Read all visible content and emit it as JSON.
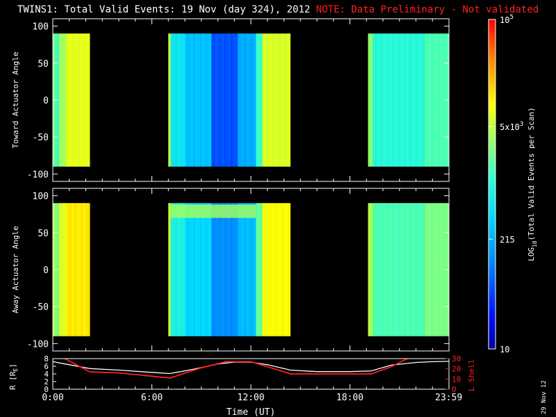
{
  "page": {
    "title": "TWINS1: Total Valid Events: 19 Nov (day 324), 2012",
    "note": "NOTE: Data Preliminary - Not validated",
    "date_stamp": "29 Nov 12"
  },
  "colors": {
    "background": "#000000",
    "axis": "#ffffff",
    "note": "#ff2020",
    "L_shell_line": "#ff2020",
    "R_line": "#ffffff"
  },
  "colorbar": {
    "label": "LOG10(Total Valid Events per Scan)",
    "label_main": "LOG",
    "label_sub": "10",
    "label_rest": "(Total Valid Events per Scan)",
    "min": 10,
    "max": 100000,
    "scale": "log",
    "tick_labels": [
      {
        "value": 100000,
        "text": "10",
        "sup": "5"
      },
      {
        "value": 5000,
        "text": "5x10",
        "sup": "3"
      },
      {
        "value": 215,
        "text": "215",
        "sup": ""
      },
      {
        "value": 10,
        "text": "10",
        "sup": ""
      }
    ]
  },
  "chart_data": [
    {
      "type": "heatmap",
      "panel": "Toward Actuator Angle",
      "ylabel": "Toward Actuator Angle",
      "xlim_hours": [
        0,
        24
      ],
      "ylim": [
        -110,
        110
      ],
      "data_ylim": [
        -90,
        90
      ],
      "yticks": [
        100,
        50,
        0,
        -50,
        -100
      ],
      "segments": [
        {
          "start": 0.0,
          "end": 0.15,
          "log10_events": 3.35
        },
        {
          "start": 0.15,
          "end": 0.35,
          "log10_events": 3.1
        },
        {
          "start": 0.35,
          "end": 0.8,
          "log10_events": 3.55
        },
        {
          "start": 0.8,
          "end": 2.25,
          "log10_events": 3.85
        },
        {
          "start": 7.0,
          "end": 7.15,
          "log10_events": 3.7
        },
        {
          "start": 7.15,
          "end": 8.0,
          "log10_events": 2.75
        },
        {
          "start": 8.0,
          "end": 9.6,
          "log10_events": 2.45
        },
        {
          "start": 9.6,
          "end": 11.2,
          "log10_events": 1.75
        },
        {
          "start": 11.2,
          "end": 12.3,
          "log10_events": 2.3
        },
        {
          "start": 12.3,
          "end": 12.7,
          "log10_events": 3.1
        },
        {
          "start": 12.7,
          "end": 14.4,
          "log10_events": 3.8
        },
        {
          "start": 19.1,
          "end": 19.4,
          "log10_events": 3.45
        },
        {
          "start": 19.4,
          "end": 22.5,
          "log10_events": 3.0
        },
        {
          "start": 22.5,
          "end": 24.0,
          "log10_events": 3.2
        }
      ]
    },
    {
      "type": "heatmap",
      "panel": "Away Actuator Angle",
      "ylabel": "Away Actuator Angle",
      "xlim_hours": [
        0,
        24
      ],
      "ylim": [
        -110,
        110
      ],
      "data_ylim": [
        -90,
        90
      ],
      "yticks": [
        100,
        50,
        0,
        -50,
        -100
      ],
      "segments": [
        {
          "start": 0.0,
          "end": 0.15,
          "log10_events": 3.6
        },
        {
          "start": 0.15,
          "end": 0.35,
          "log10_events": 3.35
        },
        {
          "start": 0.35,
          "end": 0.8,
          "log10_events": 3.8
        },
        {
          "start": 0.8,
          "end": 2.25,
          "log10_events": 4.05
        },
        {
          "start": 7.0,
          "end": 7.15,
          "log10_events": 3.75
        },
        {
          "start": 7.15,
          "end": 8.0,
          "log10_events": 2.9
        },
        {
          "start": 8.0,
          "end": 9.6,
          "log10_events": 2.6
        },
        {
          "start": 9.6,
          "end": 11.2,
          "log10_events": 2.1
        },
        {
          "start": 11.2,
          "end": 12.3,
          "log10_events": 2.4
        },
        {
          "start": 12.3,
          "end": 12.7,
          "log10_events": 3.3
        },
        {
          "start": 12.7,
          "end": 14.4,
          "log10_events": 3.95
        },
        {
          "start": 19.1,
          "end": 19.4,
          "log10_events": 3.6
        },
        {
          "start": 19.4,
          "end": 22.5,
          "log10_events": 3.2
        },
        {
          "start": 22.5,
          "end": 24.0,
          "log10_events": 3.4
        }
      ],
      "band": {
        "start": 7.15,
        "end": 12.3,
        "angle_from": 70,
        "angle_to": 88,
        "log10_events": 3.55
      }
    },
    {
      "type": "line",
      "panel": "ephemeris",
      "ylabel_left": "R [RE]",
      "ylabel_left_main": "R [R",
      "ylabel_left_sub": "E",
      "ylabel_left_end": "]",
      "ylabel_right": "L Shell",
      "xlabel": "Time (UT)",
      "x_ticks": [
        {
          "hour": 0,
          "label": "0:00"
        },
        {
          "hour": 6,
          "label": "6:00"
        },
        {
          "hour": 12,
          "label": "12:00"
        },
        {
          "hour": 18,
          "label": "18:00"
        },
        {
          "hour": 23.983,
          "label": "23:59"
        }
      ],
      "ylim_left": [
        0,
        8
      ],
      "yticks_left": [
        8,
        6,
        4,
        2,
        0
      ],
      "ylim_right": [
        0,
        30
      ],
      "yticks_right": [
        30,
        20,
        10,
        0
      ],
      "series": [
        {
          "name": "R",
          "axis": "left",
          "x": [
            0,
            1,
            2.25,
            4,
            6,
            7.1,
            8.5,
            10,
            11,
            12,
            13,
            14.4,
            16,
            18,
            19.3,
            20.5,
            22,
            23,
            24
          ],
          "y": [
            7.2,
            6.4,
            5.4,
            5.0,
            4.4,
            4.1,
            5.2,
            6.6,
            7.1,
            7.1,
            6.4,
            5.0,
            4.6,
            4.6,
            4.8,
            6.3,
            7.0,
            7.2,
            7.3
          ]
        },
        {
          "name": "L Shell",
          "axis": "right",
          "x": [
            0.6,
            2.25,
            4,
            7.1,
            9,
            10.5,
            12,
            13,
            14.4,
            17,
            19.3,
            20.5,
            21.6
          ],
          "y": [
            31,
            17,
            16,
            11,
            21,
            27,
            27,
            22,
            15,
            15,
            15,
            22,
            31
          ]
        }
      ]
    }
  ]
}
